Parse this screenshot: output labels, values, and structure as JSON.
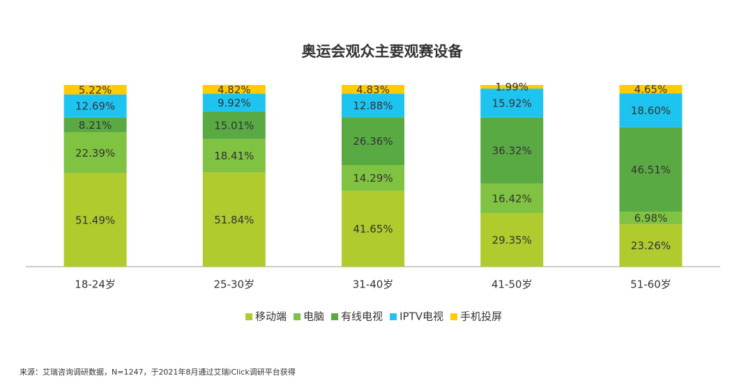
{
  "chart_data": {
    "type": "stacked-bar",
    "title": "奥运会观众主要观赛设备",
    "categories": [
      "18-24岁",
      "25-30岁",
      "31-40岁",
      "41-50岁",
      "51-60岁"
    ],
    "ylim": [
      0,
      100
    ],
    "series": [
      {
        "name": "移动端",
        "color": "#afcb2e",
        "values": [
          51.49,
          51.84,
          41.65,
          29.35,
          23.26
        ],
        "value_labels": [
          "51.49%",
          "51.84%",
          "41.65%",
          "29.35%",
          "23.26%"
        ]
      },
      {
        "name": "电脑",
        "color": "#80c241",
        "values": [
          22.39,
          18.41,
          14.29,
          16.42,
          6.98
        ],
        "value_labels": [
          "22.39%",
          "18.41%",
          "14.29%",
          "16.42%",
          "6.98%"
        ]
      },
      {
        "name": "有线电视",
        "color": "#5aaa44",
        "values": [
          8.21,
          15.01,
          26.36,
          36.32,
          46.51
        ],
        "value_labels": [
          "8.21%",
          "15.01%",
          "26.36%",
          "36.32%",
          "46.51%"
        ]
      },
      {
        "name": "IPTV电视",
        "color": "#1ec4f0",
        "values": [
          12.69,
          9.92,
          12.88,
          15.92,
          18.6
        ],
        "value_labels": [
          "12.69%",
          "9.92%",
          "12.88%",
          "15.92%",
          "18.60%"
        ]
      },
      {
        "name": "手机投屏",
        "color": "#ffcb05",
        "values": [
          5.22,
          4.82,
          4.83,
          1.99,
          4.65
        ],
        "value_labels": [
          "5.22%",
          "4.82%",
          "4.83%",
          "1.99%",
          "4.65%"
        ]
      }
    ],
    "source": "来源：艾瑞咨询调研数据，N=1247，于2021年8月通过艾瑞iClick调研平台获得"
  }
}
